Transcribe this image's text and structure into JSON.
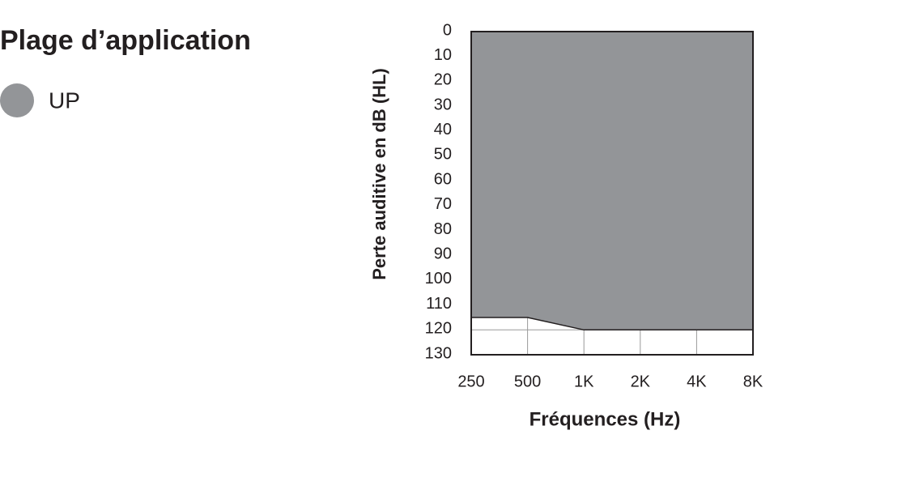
{
  "chart_data": {
    "type": "area",
    "title": "Plage d’application",
    "x_label": "Fréquences (Hz)",
    "y_label": "Perte auditive en dB (HL)",
    "categories": [
      "250",
      "500",
      "1K",
      "2K",
      "4K",
      "8K"
    ],
    "series": [
      {
        "name": "UP",
        "color": "#939598",
        "values": [
          115,
          115,
          120,
          120,
          120,
          120
        ]
      }
    ],
    "ylim": [
      0,
      130
    ],
    "yticks": [
      0,
      10,
      20,
      30,
      40,
      50,
      60,
      70,
      80,
      90,
      100,
      110,
      120,
      130
    ],
    "y_inverted": true,
    "grid": true
  }
}
